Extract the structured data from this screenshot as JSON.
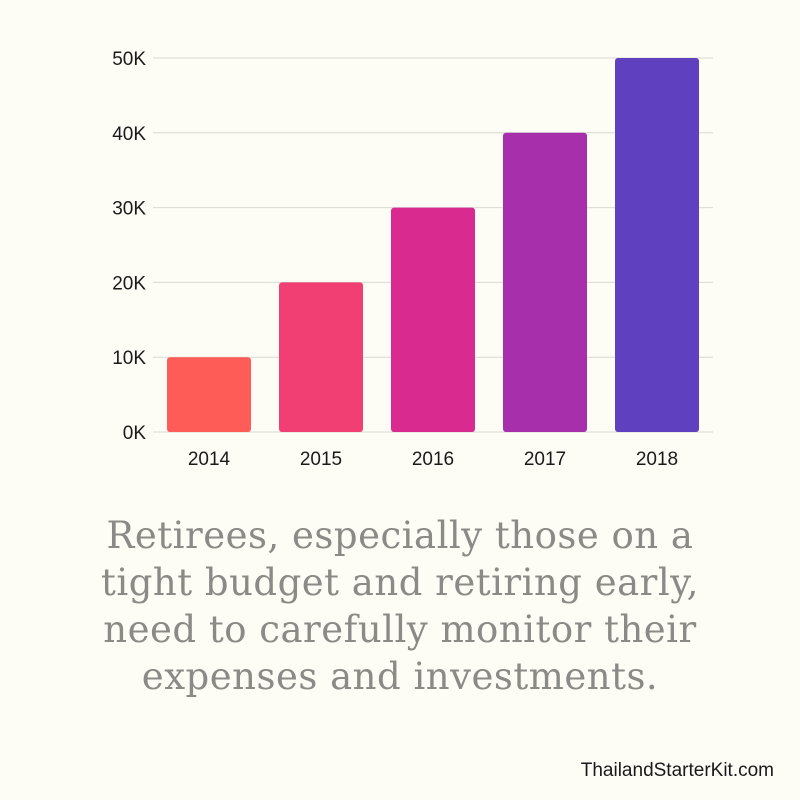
{
  "chart_data": {
    "type": "bar",
    "categories": [
      "2014",
      "2015",
      "2016",
      "2017",
      "2018"
    ],
    "values": [
      10000,
      20000,
      30000,
      40000,
      50000
    ],
    "ylim": [
      0,
      50000
    ],
    "yticks": [
      "0K",
      "10K",
      "20K",
      "30K",
      "40K",
      "50K"
    ],
    "colors": [
      "#fd5c57",
      "#f23f73",
      "#d92b8f",
      "#a82fac",
      "#5f41c0"
    ],
    "grid": true,
    "title": "",
    "xlabel": "",
    "ylabel": ""
  },
  "caption": {
    "line1": "Retirees, especially those on a",
    "line2": "tight budget and retiring early,",
    "line3": "need to carefully monitor their",
    "line4": "expenses and investments."
  },
  "footer": {
    "site": "ThailandStarterKit.com"
  }
}
